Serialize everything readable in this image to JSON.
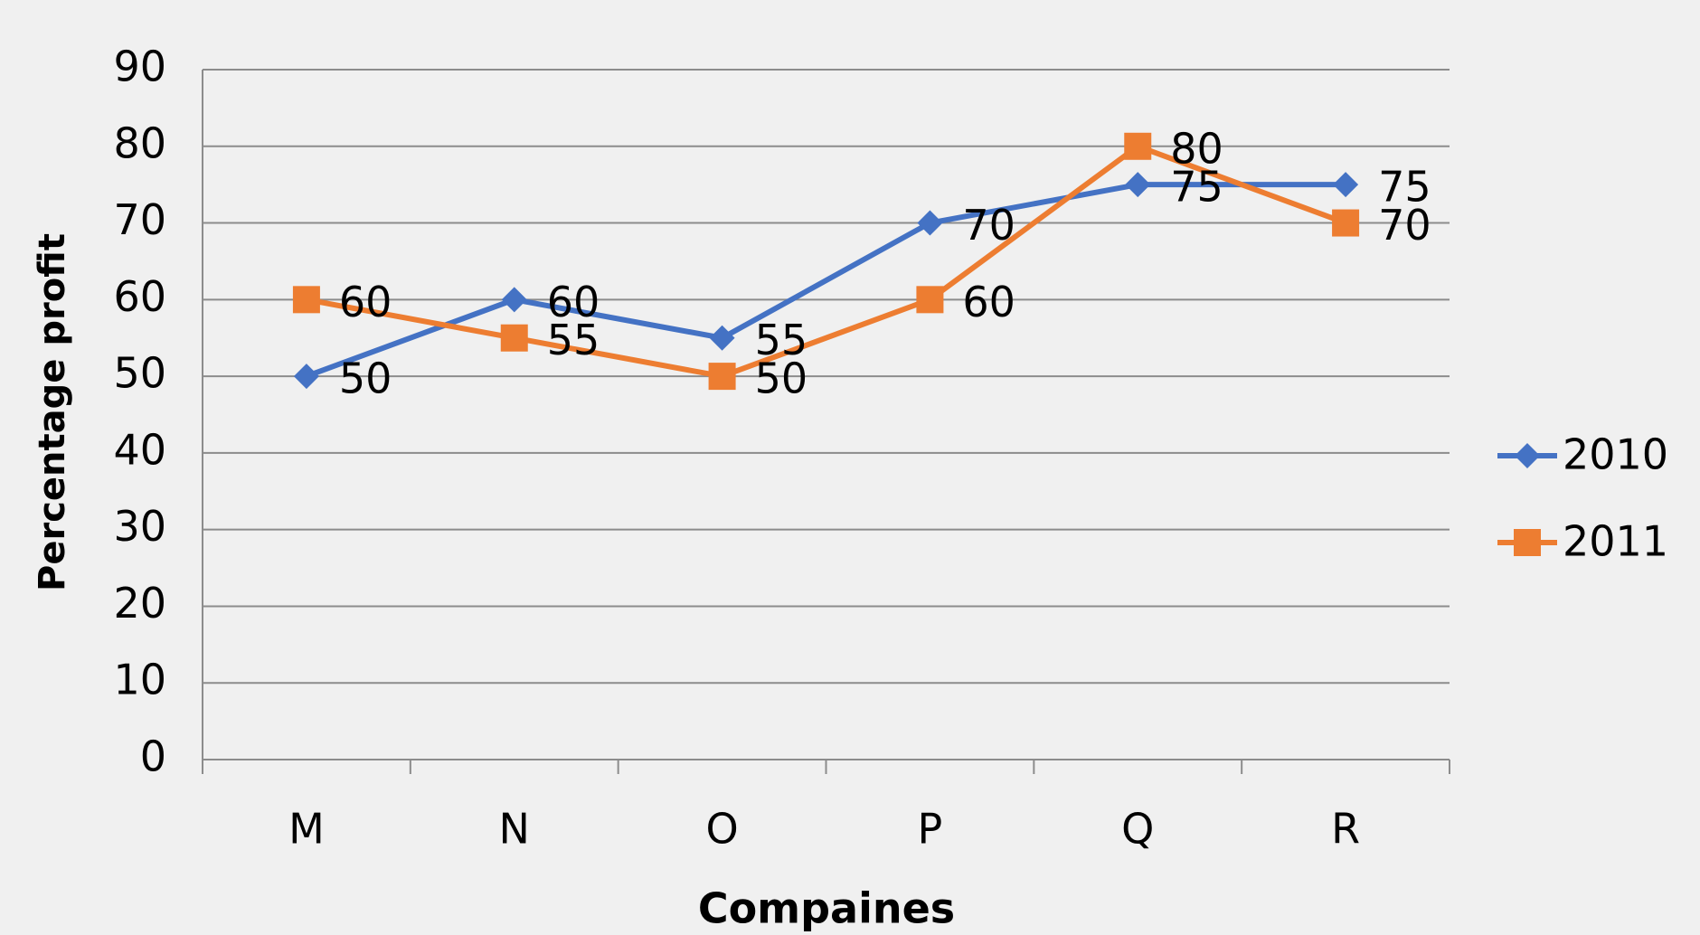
{
  "chart_data": {
    "type": "line",
    "x_label": "Compaines",
    "y_label": "Percentage profit",
    "categories": [
      "M",
      "N",
      "O",
      "P",
      "Q",
      "R"
    ],
    "series": [
      {
        "name": "2010",
        "color": "#4472c4",
        "marker": "diamond",
        "values": [
          50,
          60,
          55,
          70,
          75,
          75
        ]
      },
      {
        "name": "2011",
        "color": "#ed7d31",
        "marker": "square",
        "values": [
          60,
          55,
          50,
          60,
          80,
          70
        ]
      }
    ],
    "ylim": [
      0,
      90
    ],
    "yticks": [
      0,
      10,
      20,
      30,
      40,
      50,
      60,
      70,
      80,
      90
    ],
    "grid": true,
    "legend": "right",
    "data_labels": true
  }
}
